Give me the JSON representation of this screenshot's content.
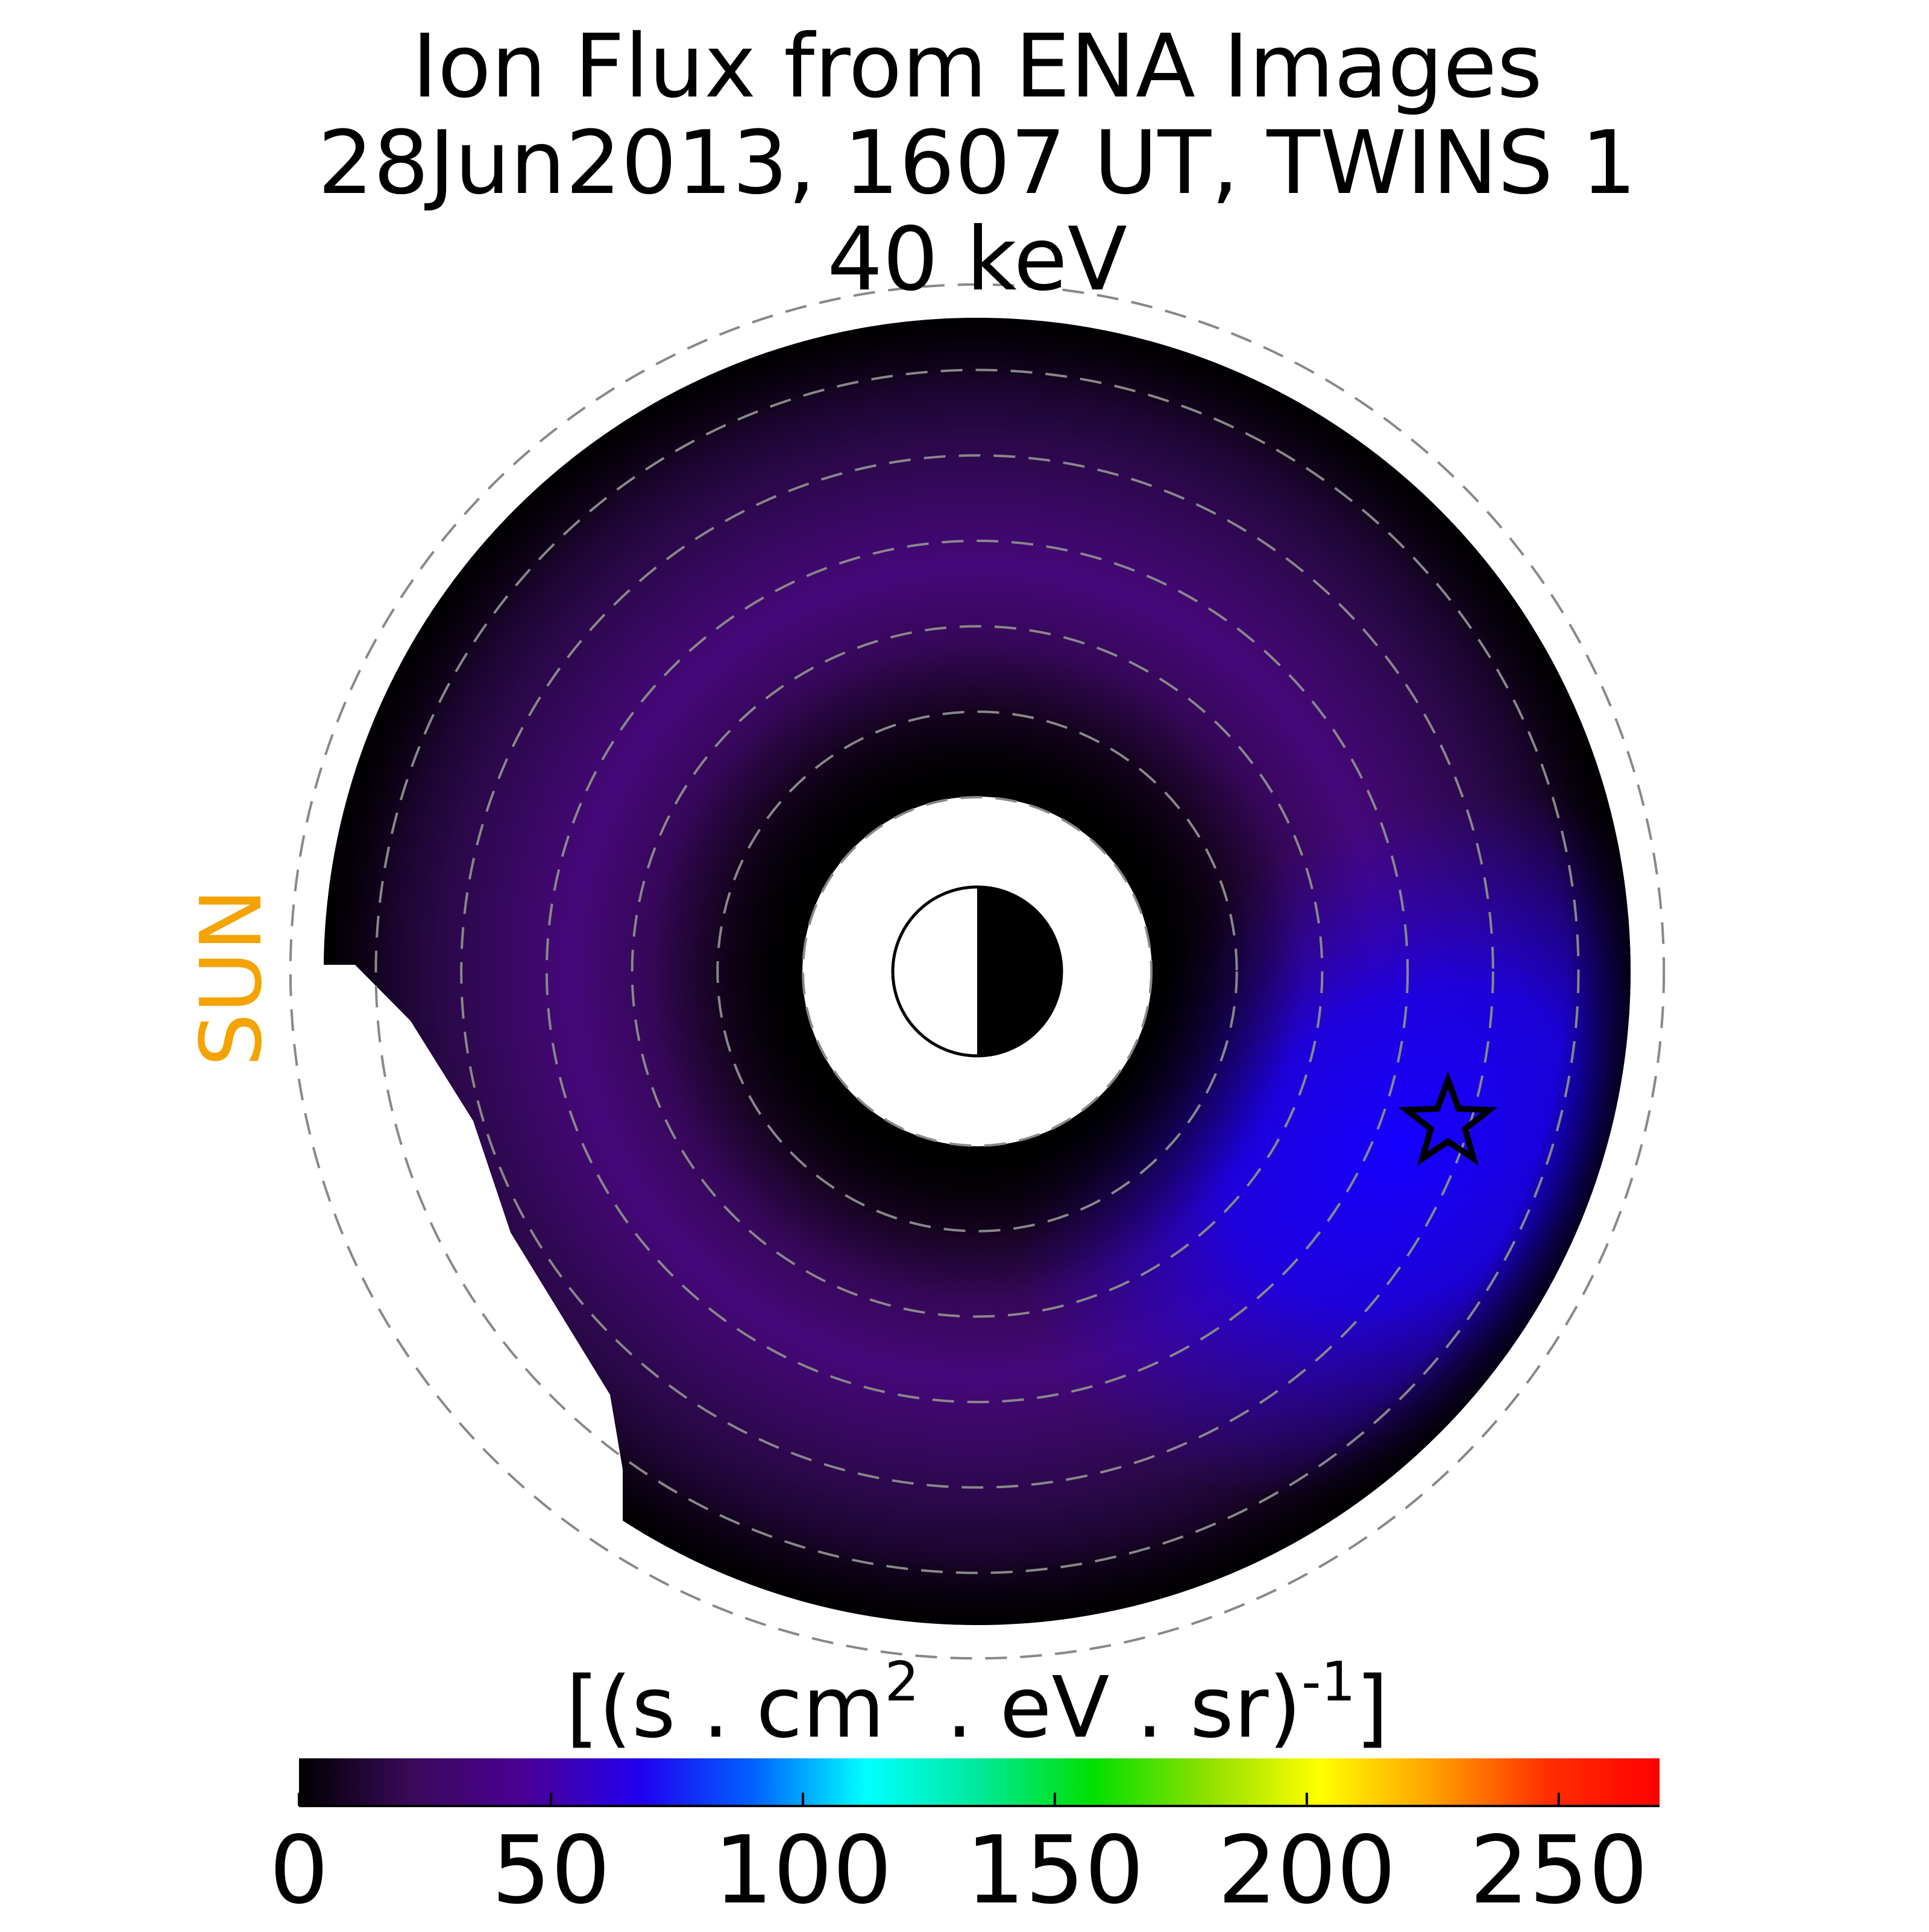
{
  "chart_data": {
    "type": "polar-flux-map",
    "title": [
      "Ion Flux from  ENA Images",
      "28Jun2013, 1607 UT,  TWINS 1",
      "40 keV"
    ],
    "side_label": "SUN",
    "side_label_color": "#f5a300",
    "colorbar": {
      "label": [
        "[(s . cm",
        "2",
        "  . eV . sr)",
        "-1",
        "]"
      ],
      "lim": [
        0,
        270
      ],
      "ticks": [
        0,
        50,
        100,
        150,
        200,
        250
      ],
      "colormap": [
        "#000000",
        "#3a0a5a",
        "#4b0095",
        "#2200f0",
        "#0060ff",
        "#00ffff",
        "#00e89a",
        "#00e000",
        "#8ee000",
        "#ffff00",
        "#ffa000",
        "#ff3000",
        "#ff0000"
      ]
    }
  }
}
